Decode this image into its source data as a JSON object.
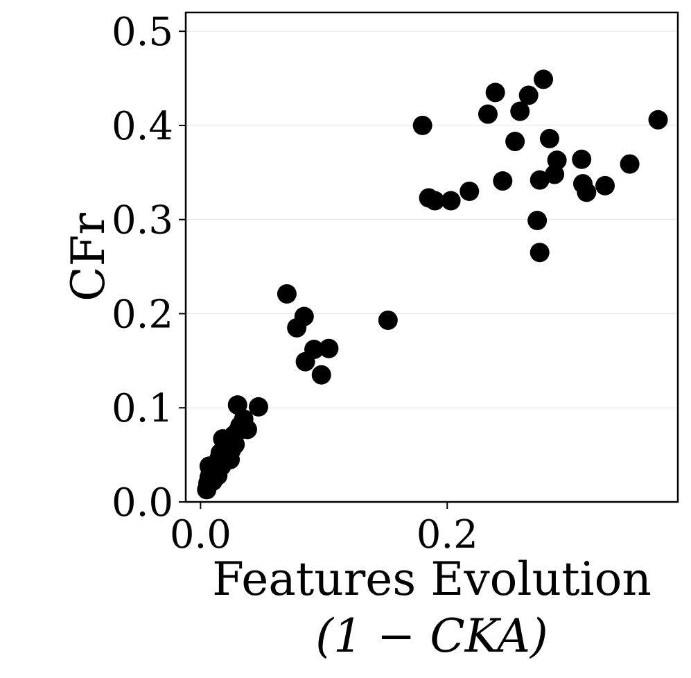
{
  "chart_data": {
    "type": "scatter",
    "title": "",
    "xlabel": "Features Evolution",
    "xlabel_line2": "(1 − CKA)",
    "ylabel": "CFr",
    "xlim": [
      -0.012,
      0.387
    ],
    "ylim": [
      0.0,
      0.52
    ],
    "x_ticks": [
      0.0,
      0.2
    ],
    "x_tick_labels": [
      "0.0",
      "0.2"
    ],
    "y_ticks": [
      0.0,
      0.1,
      0.2,
      0.3,
      0.4,
      0.5
    ],
    "y_tick_labels": [
      "0.0",
      "0.1",
      "0.2",
      "0.3",
      "0.4",
      "0.5"
    ],
    "grid": "horizontal",
    "marker_color": "#000000",
    "points": [
      [
        0.005,
        0.013
      ],
      [
        0.006,
        0.02
      ],
      [
        0.007,
        0.026
      ],
      [
        0.008,
        0.031
      ],
      [
        0.007,
        0.038
      ],
      [
        0.01,
        0.022
      ],
      [
        0.011,
        0.03
      ],
      [
        0.012,
        0.035
      ],
      [
        0.013,
        0.041
      ],
      [
        0.014,
        0.028
      ],
      [
        0.015,
        0.046
      ],
      [
        0.016,
        0.052
      ],
      [
        0.017,
        0.038
      ],
      [
        0.018,
        0.043
      ],
      [
        0.019,
        0.056
      ],
      [
        0.02,
        0.05
      ],
      [
        0.021,
        0.06
      ],
      [
        0.022,
        0.047
      ],
      [
        0.023,
        0.066
      ],
      [
        0.025,
        0.055
      ],
      [
        0.018,
        0.067
      ],
      [
        0.027,
        0.071
      ],
      [
        0.028,
        0.061
      ],
      [
        0.03,
        0.075
      ],
      [
        0.032,
        0.081
      ],
      [
        0.035,
        0.088
      ],
      [
        0.038,
        0.077
      ],
      [
        0.03,
        0.103
      ],
      [
        0.047,
        0.101
      ],
      [
        0.024,
        0.045
      ],
      [
        0.07,
        0.221
      ],
      [
        0.078,
        0.185
      ],
      [
        0.084,
        0.197
      ],
      [
        0.085,
        0.149
      ],
      [
        0.092,
        0.162
      ],
      [
        0.098,
        0.135
      ],
      [
        0.104,
        0.163
      ],
      [
        0.152,
        0.193
      ],
      [
        0.18,
        0.4
      ],
      [
        0.185,
        0.323
      ],
      [
        0.19,
        0.32
      ],
      [
        0.203,
        0.32
      ],
      [
        0.218,
        0.33
      ],
      [
        0.233,
        0.412
      ],
      [
        0.239,
        0.435
      ],
      [
        0.245,
        0.341
      ],
      [
        0.255,
        0.383
      ],
      [
        0.259,
        0.415
      ],
      [
        0.266,
        0.432
      ],
      [
        0.273,
        0.299
      ],
      [
        0.275,
        0.342
      ],
      [
        0.275,
        0.265
      ],
      [
        0.278,
        0.449
      ],
      [
        0.283,
        0.386
      ],
      [
        0.287,
        0.348
      ],
      [
        0.289,
        0.363
      ],
      [
        0.309,
        0.364
      ],
      [
        0.31,
        0.338
      ],
      [
        0.313,
        0.329
      ],
      [
        0.328,
        0.336
      ],
      [
        0.348,
        0.359
      ],
      [
        0.371,
        0.406
      ]
    ]
  }
}
